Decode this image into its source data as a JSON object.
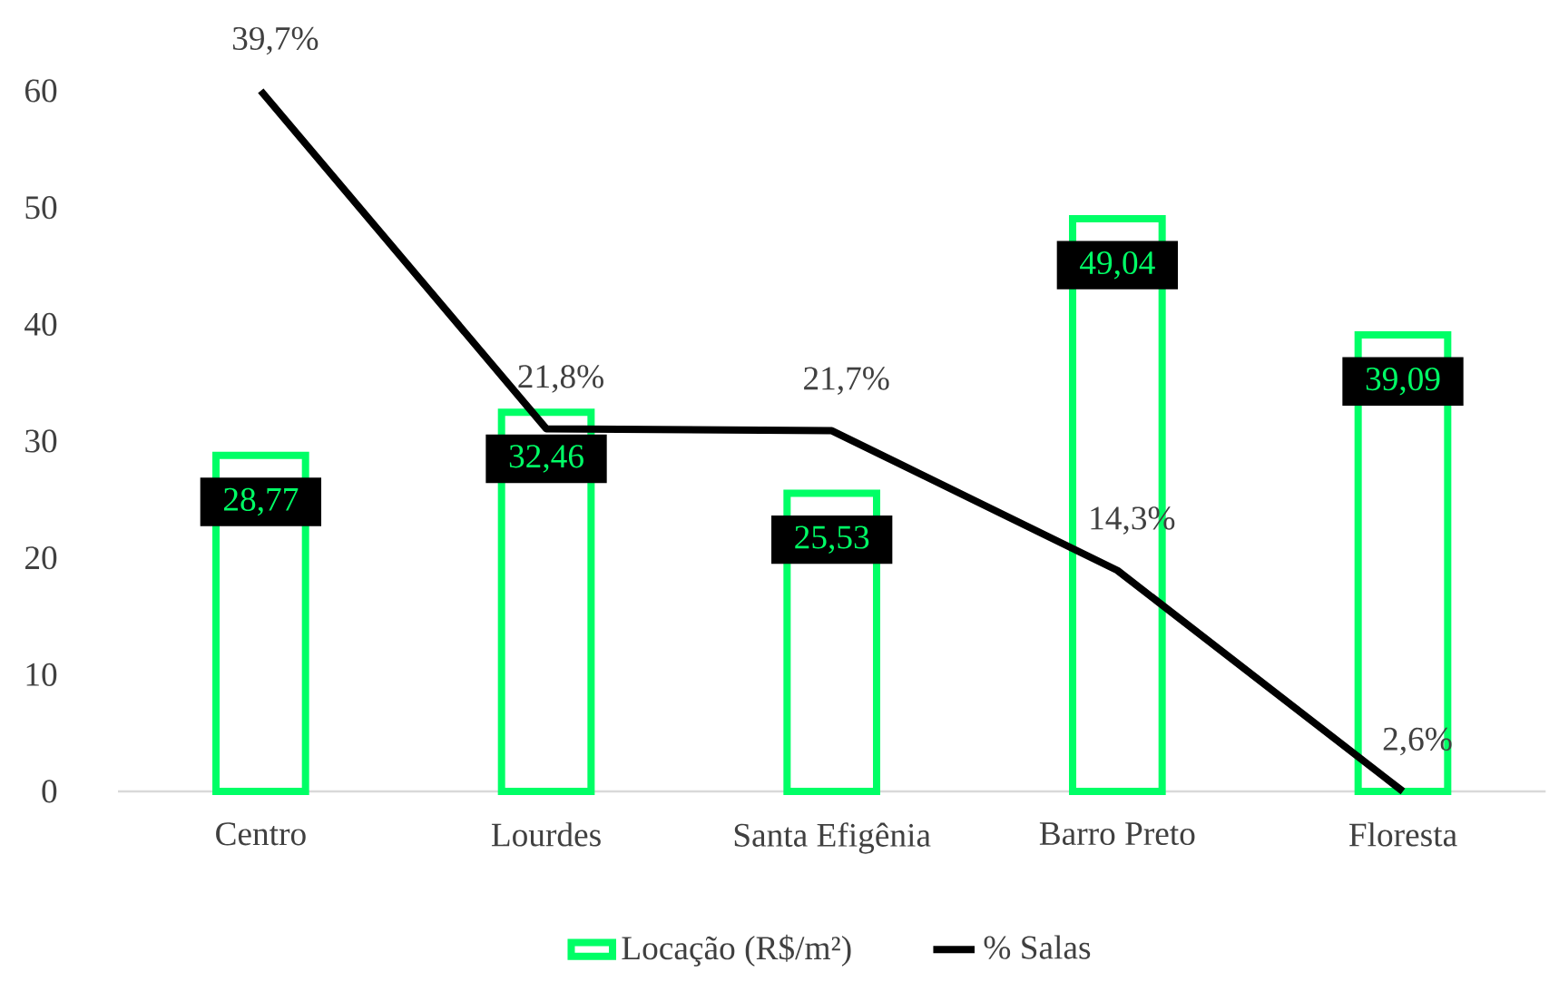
{
  "chart_data": {
    "type": "bar",
    "categories": [
      "Centro",
      "Lourdes",
      "Santa Efigênia",
      "Barro Preto",
      "Floresta"
    ],
    "ylim": [
      0,
      60
    ],
    "yticks": [
      0,
      10,
      20,
      30,
      40,
      50,
      60
    ],
    "legend": "bottom",
    "series": [
      {
        "name": "Locação (R$/m²)",
        "color": "#00ff66",
        "values": [
          28.77,
          32.46,
          25.53,
          49.04,
          39.09
        ],
        "value_labels": [
          "28,77",
          "32,46",
          "25,53",
          "49,04",
          "39,09"
        ]
      },
      {
        "name": "% Salas",
        "type": "line",
        "axis": "y2",
        "color": "#000000",
        "values": [
          39.7,
          21.8,
          21.7,
          14.3,
          2.6
        ],
        "value_labels": [
          "39,7%",
          "21,8%",
          "21,7%",
          "14,3%",
          "2,6%"
        ]
      }
    ]
  }
}
